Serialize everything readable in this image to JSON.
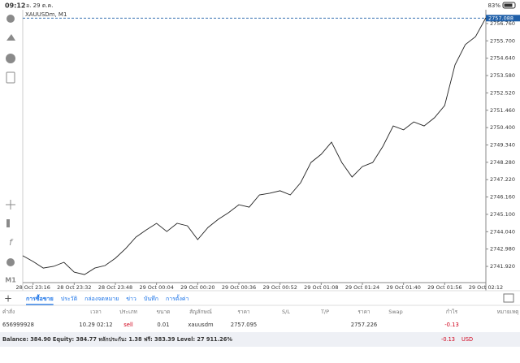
{
  "status_bar": {
    "time": "09:12",
    "date": "อ. 29 ต.ค.",
    "battery": "83%"
  },
  "chart_data": {
    "type": "line",
    "title": "XAUUSDm, M1",
    "color": "#222222",
    "x": [
      "28 Oct 23:12",
      "28 Oct 23:16",
      "28 Oct 23:20",
      "28 Oct 23:24",
      "28 Oct 23:28",
      "28 Oct 23:32",
      "28 Oct 23:36",
      "28 Oct 23:40",
      "28 Oct 23:44",
      "28 Oct 23:48",
      "28 Oct 23:52",
      "28 Oct 23:56",
      "29 Oct 00:00",
      "29 Oct 00:04",
      "29 Oct 00:08",
      "29 Oct 00:12",
      "29 Oct 00:16",
      "29 Oct 00:20",
      "29 Oct 00:24",
      "29 Oct 00:28",
      "29 Oct 00:32",
      "29 Oct 00:36",
      "29 Oct 00:40",
      "29 Oct 00:44",
      "29 Oct 00:48",
      "29 Oct 00:52",
      "29 Oct 00:56",
      "29 Oct 01:00",
      "29 Oct 01:04",
      "29 Oct 01:08",
      "29 Oct 01:12",
      "29 Oct 01:16",
      "29 Oct 01:20",
      "29 Oct 01:24",
      "29 Oct 01:28",
      "29 Oct 01:32",
      "29 Oct 01:36",
      "29 Oct 01:40",
      "29 Oct 01:44",
      "29 Oct 01:48",
      "29 Oct 01:52",
      "29 Oct 01:56",
      "29 Oct 02:00",
      "29 Oct 02:04",
      "29 Oct 02:08",
      "29 Oct 02:12"
    ],
    "values": [
      2742.57,
      2742.22,
      2741.82,
      2741.92,
      2742.17,
      2741.57,
      2741.42,
      2741.82,
      2741.97,
      2742.42,
      2743.01,
      2743.71,
      2744.15,
      2744.55,
      2744.05,
      2744.55,
      2744.4,
      2743.56,
      2744.3,
      2744.8,
      2745.2,
      2745.69,
      2745.54,
      2746.29,
      2746.39,
      2746.54,
      2746.29,
      2747.03,
      2748.27,
      2748.77,
      2749.51,
      2748.27,
      2747.38,
      2748.02,
      2748.27,
      2749.26,
      2750.5,
      2750.26,
      2750.75,
      2750.5,
      2751.0,
      2751.75,
      2754.23,
      2755.47,
      2755.96,
      2757.11
    ],
    "xticks": [
      "28 Oct 23:16",
      "28 Oct 23:32",
      "28 Oct 23:48",
      "29 Oct 00:04",
      "29 Oct 00:20",
      "29 Oct 00:36",
      "29 Oct 00:52",
      "29 Oct 01:08",
      "29 Oct 01:24",
      "29 Oct 01:40",
      "29 Oct 01:56",
      "29 Oct 02:12"
    ],
    "ylim": [
      2740.93,
      2757.6
    ],
    "yticks": [
      {
        "value": 2741.92,
        "label": "2741.920"
      },
      {
        "value": 2742.98,
        "label": "2742.980"
      },
      {
        "value": 2744.04,
        "label": "2744.040"
      },
      {
        "value": 2745.1,
        "label": "2745.100"
      },
      {
        "value": 2746.16,
        "label": "2746.160"
      },
      {
        "value": 2747.22,
        "label": "2747.220"
      },
      {
        "value": 2748.28,
        "label": "2748.280"
      },
      {
        "value": 2749.34,
        "label": "2749.340"
      },
      {
        "value": 2750.4,
        "label": "2750.400"
      },
      {
        "value": 2751.46,
        "label": "2751.460"
      },
      {
        "value": 2752.52,
        "label": "2752.520"
      },
      {
        "value": 2753.58,
        "label": "2753.580"
      },
      {
        "value": 2754.64,
        "label": "2754.640"
      },
      {
        "value": 2755.7,
        "label": "2755.700"
      },
      {
        "value": 2756.76,
        "label": "2756.760"
      }
    ],
    "price_line": {
      "value": 2757.088,
      "label": "2757.088",
      "color": "#1f5fa8"
    }
  },
  "timeframe_button": "M1",
  "tabs": {
    "items": [
      "การซื้อขาย",
      "ประวัติ",
      "กล่องจดหมาย",
      "ข่าว",
      "บันทึก",
      "การตั้งค่า"
    ],
    "active": 0
  },
  "table": {
    "columns": [
      "คำสั่ง",
      "เวลา",
      "ประเภท",
      "ขนาด",
      "สัญลักษณ์",
      "ราคา",
      "S/L",
      "T/P",
      "ราคา",
      "Swap",
      "กำไร",
      "หมายเหตุ"
    ],
    "rows": [
      {
        "order": "656999928",
        "time": "10.29 02:12",
        "type": "sell",
        "volume": "0.01",
        "symbol": "xauusdm",
        "price": "2757.095",
        "current_price": "2757.226",
        "profit": "-0.13"
      }
    ]
  },
  "balance": {
    "summary": "Balance: 384.90 Equity: 384.77 หลักประกัน: 1.38 ฟรี: 383.39 Level: 27 911.26%",
    "profit": "-0.13",
    "currency": "USD"
  }
}
